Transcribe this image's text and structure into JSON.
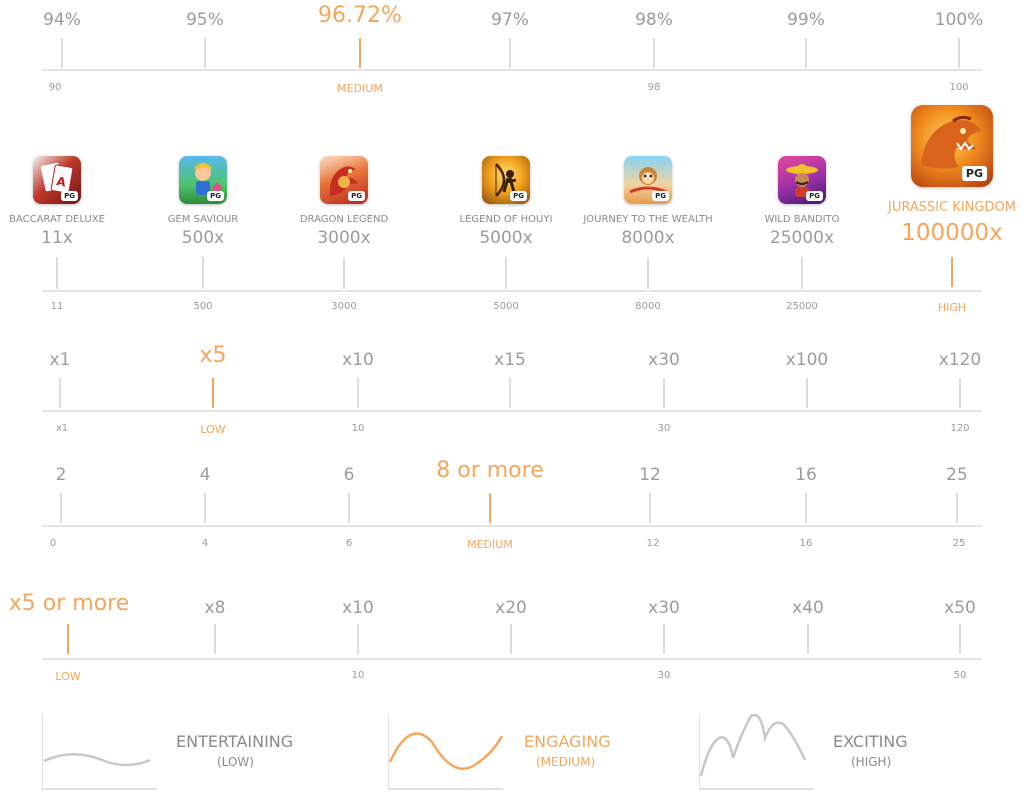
{
  "colors": {
    "accent": "#f5a65b",
    "text": "#8a8a8a",
    "line": "#e4e4e4"
  },
  "rtp": {
    "values": [
      {
        "label": "94%",
        "highlight": false
      },
      {
        "label": "95%",
        "highlight": false
      },
      {
        "label": "96.72%",
        "highlight": true
      },
      {
        "label": "97%",
        "highlight": false
      },
      {
        "label": "98%",
        "highlight": false
      },
      {
        "label": "99%",
        "highlight": false
      },
      {
        "label": "100%",
        "highlight": false
      }
    ],
    "scale": [
      {
        "label": "90",
        "highlight": false
      },
      {
        "label": "MEDIUM",
        "highlight": true
      },
      {
        "label": "98",
        "highlight": false
      },
      {
        "label": "100",
        "highlight": false
      }
    ]
  },
  "max_win": {
    "games": [
      {
        "name": "BACCARAT DELUXE",
        "value": "11x",
        "icon": "baccarat-deluxe-icon",
        "highlight": false
      },
      {
        "name": "GEM SAVIOUR",
        "value": "500x",
        "icon": "gem-saviour-icon",
        "highlight": false
      },
      {
        "name": "DRAGON LEGEND",
        "value": "3000x",
        "icon": "dragon-legend-icon",
        "highlight": false
      },
      {
        "name": "LEGEND OF HOUYI",
        "value": "5000x",
        "icon": "legend-of-houyi-icon",
        "highlight": false
      },
      {
        "name": "JOURNEY TO THE WEALTH",
        "value": "8000x",
        "icon": "journey-to-the-wealth-icon",
        "highlight": false
      },
      {
        "name": "WILD BANDITO",
        "value": "25000x",
        "icon": "wild-bandito-icon",
        "highlight": false
      },
      {
        "name": "JURASSIC KINGDOM",
        "value": "100000x",
        "icon": "jurassic-kingdom-icon",
        "highlight": true
      }
    ],
    "scale": [
      {
        "label": "11",
        "highlight": false
      },
      {
        "label": "500",
        "highlight": false
      },
      {
        "label": "3000",
        "highlight": false
      },
      {
        "label": "5000",
        "highlight": false
      },
      {
        "label": "8000",
        "highlight": false
      },
      {
        "label": "25000",
        "highlight": false
      },
      {
        "label": "HIGH",
        "highlight": true
      }
    ],
    "badge": "PG"
  },
  "multiplier": {
    "values": [
      {
        "label": "x1",
        "highlight": false
      },
      {
        "label": "x5",
        "highlight": true
      },
      {
        "label": "x10",
        "highlight": false
      },
      {
        "label": "x15",
        "highlight": false
      },
      {
        "label": "x30",
        "highlight": false
      },
      {
        "label": "x100",
        "highlight": false
      },
      {
        "label": "x120",
        "highlight": false
      }
    ],
    "scale": [
      {
        "label": "x1",
        "highlight": false
      },
      {
        "label": "LOW",
        "highlight": true
      },
      {
        "label": "10",
        "highlight": false
      },
      {
        "label": "30",
        "highlight": false
      },
      {
        "label": "120",
        "highlight": false
      }
    ]
  },
  "ways": {
    "values": [
      {
        "label": "2",
        "highlight": false
      },
      {
        "label": "4",
        "highlight": false
      },
      {
        "label": "6",
        "highlight": false
      },
      {
        "label": "8 or more",
        "highlight": true
      },
      {
        "label": "12",
        "highlight": false
      },
      {
        "label": "16",
        "highlight": false
      },
      {
        "label": "25",
        "highlight": false
      }
    ],
    "scale": [
      {
        "label": "0",
        "highlight": false
      },
      {
        "label": "4",
        "highlight": false
      },
      {
        "label": "6",
        "highlight": false
      },
      {
        "label": "MEDIUM",
        "highlight": true
      },
      {
        "label": "12",
        "highlight": false
      },
      {
        "label": "16",
        "highlight": false
      },
      {
        "label": "25",
        "highlight": false
      }
    ]
  },
  "bonus": {
    "values": [
      {
        "label": "x5 or more",
        "highlight": true
      },
      {
        "label": "x8",
        "highlight": false
      },
      {
        "label": "x10",
        "highlight": false
      },
      {
        "label": "x20",
        "highlight": false
      },
      {
        "label": "x30",
        "highlight": false
      },
      {
        "label": "x40",
        "highlight": false
      },
      {
        "label": "x50",
        "highlight": false
      }
    ],
    "scale": [
      {
        "label": "LOW",
        "highlight": true
      },
      {
        "label": "10",
        "highlight": false
      },
      {
        "label": "30",
        "highlight": false
      },
      {
        "label": "50",
        "highlight": false
      }
    ]
  },
  "volatility": [
    {
      "title": "ENTERTAINING",
      "sub": "(LOW)",
      "highlight": false,
      "icon": "low-wave-icon"
    },
    {
      "title": "ENGAGING",
      "sub": "(MEDIUM)",
      "highlight": true,
      "icon": "medium-wave-icon"
    },
    {
      "title": "EXCITING",
      "sub": "(HIGH)",
      "highlight": false,
      "icon": "high-wave-icon"
    }
  ]
}
